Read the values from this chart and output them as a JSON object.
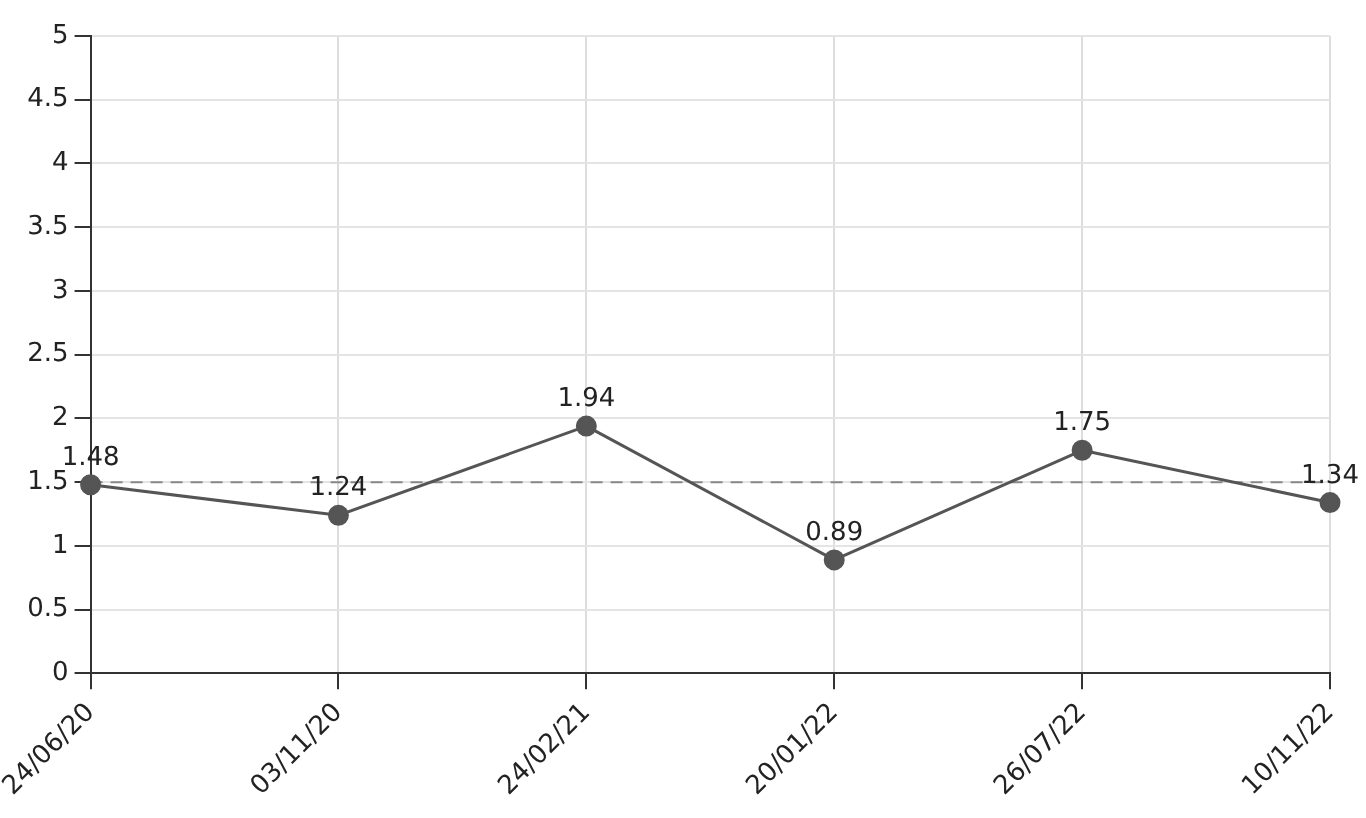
{
  "chart_data": {
    "type": "line",
    "categories": [
      "24/06/20",
      "03/11/20",
      "24/02/21",
      "20/01/22",
      "26/07/22",
      "10/11/22"
    ],
    "series": [
      {
        "color": "#555555",
        "values": [
          1.48,
          1.24,
          1.94,
          0.89,
          1.75,
          1.34
        ]
      }
    ],
    "ylim": [
      0,
      5
    ],
    "yticks": [
      0,
      0.5,
      1,
      1.5,
      2,
      2.5,
      3,
      3.5,
      4,
      4.5,
      5
    ],
    "grid": true,
    "legend": false,
    "marker": "circle",
    "line_style": "solid",
    "data_labels": true,
    "ref_lines": [
      {
        "axis": "y",
        "value": 1.5,
        "color": "#888888",
        "line_style": "dashed"
      }
    ]
  }
}
